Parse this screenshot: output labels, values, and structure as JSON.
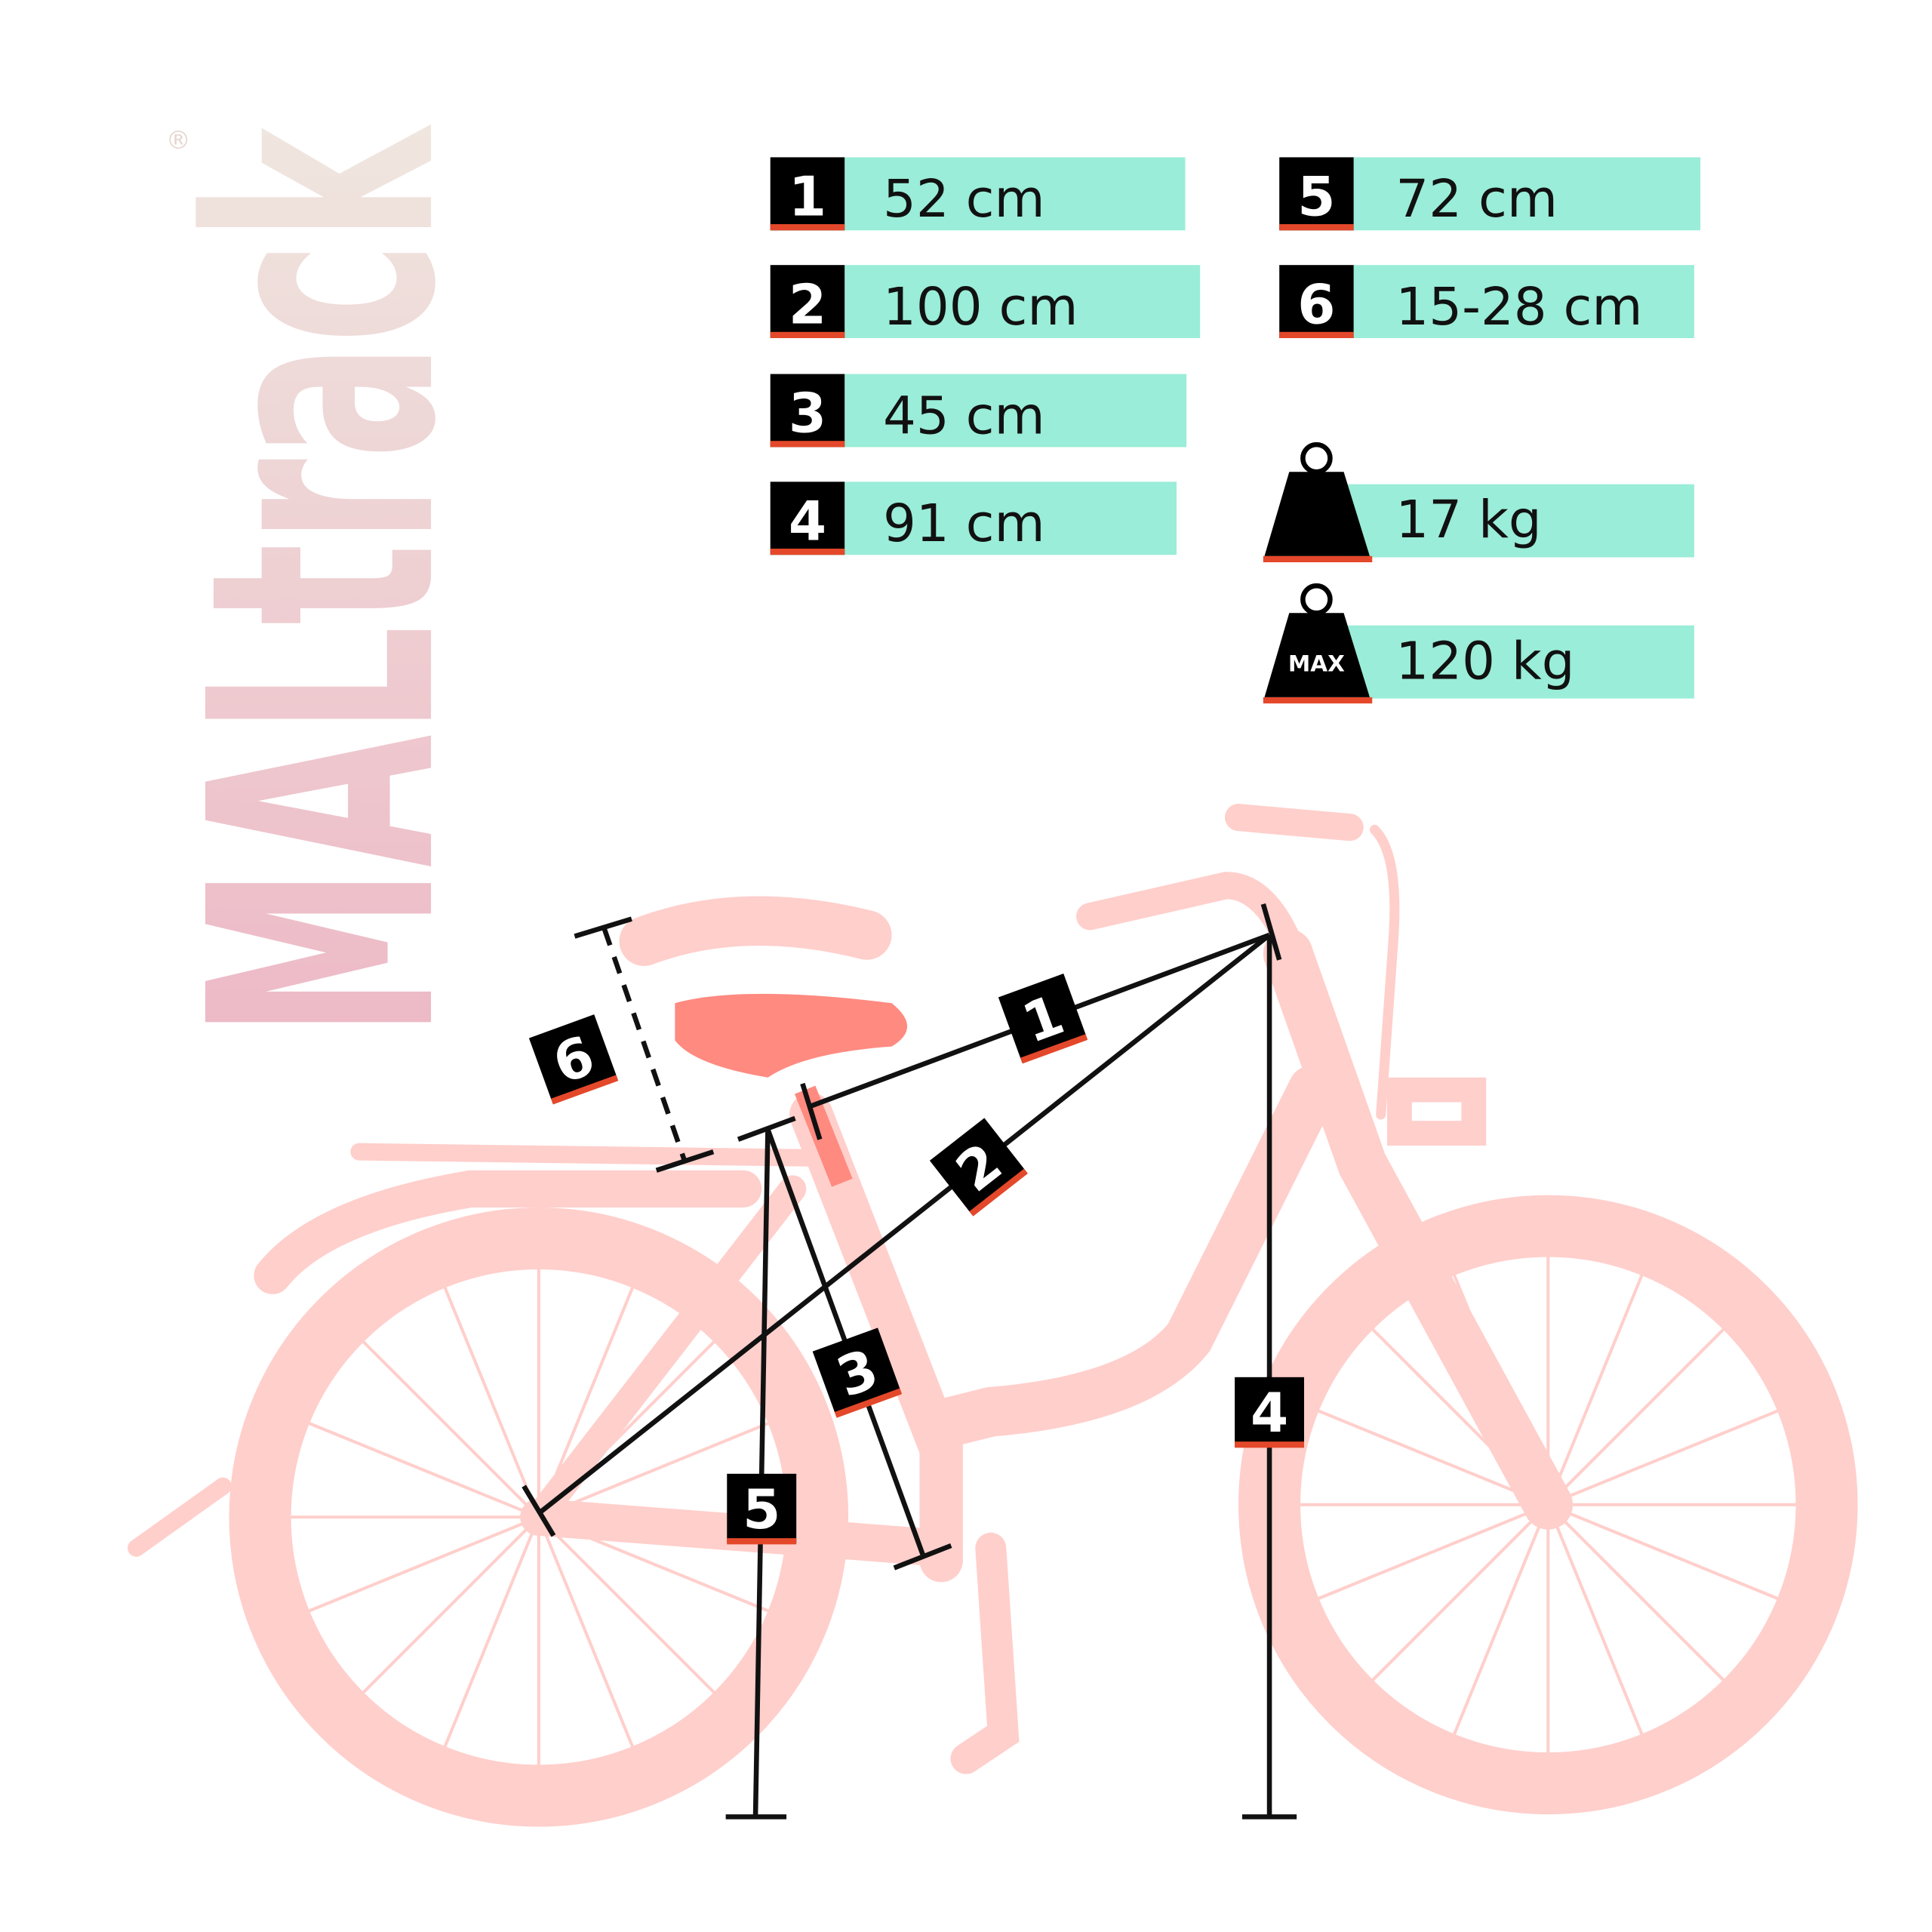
{
  "brand": {
    "logo_text": "MALtrack",
    "registered_mark": "®"
  },
  "colors": {
    "accent": "#9AEDD8",
    "stripe": "#E4482A",
    "bike": "#FFCFCB",
    "saddle": "#FF8A80",
    "label_bg": "#000000"
  },
  "specs": [
    {
      "num": "1",
      "value": "52 cm"
    },
    {
      "num": "2",
      "value": "100 cm"
    },
    {
      "num": "3",
      "value": "45 cm"
    },
    {
      "num": "4",
      "value": "91 cm"
    },
    {
      "num": "5",
      "value": "72 cm"
    },
    {
      "num": "6",
      "value": "15-28 cm"
    }
  ],
  "weights": [
    {
      "icon": "weight-icon",
      "value": "17 kg"
    },
    {
      "icon": "max-weight-icon",
      "badge": "MAX",
      "value": "120 kg"
    }
  ]
}
